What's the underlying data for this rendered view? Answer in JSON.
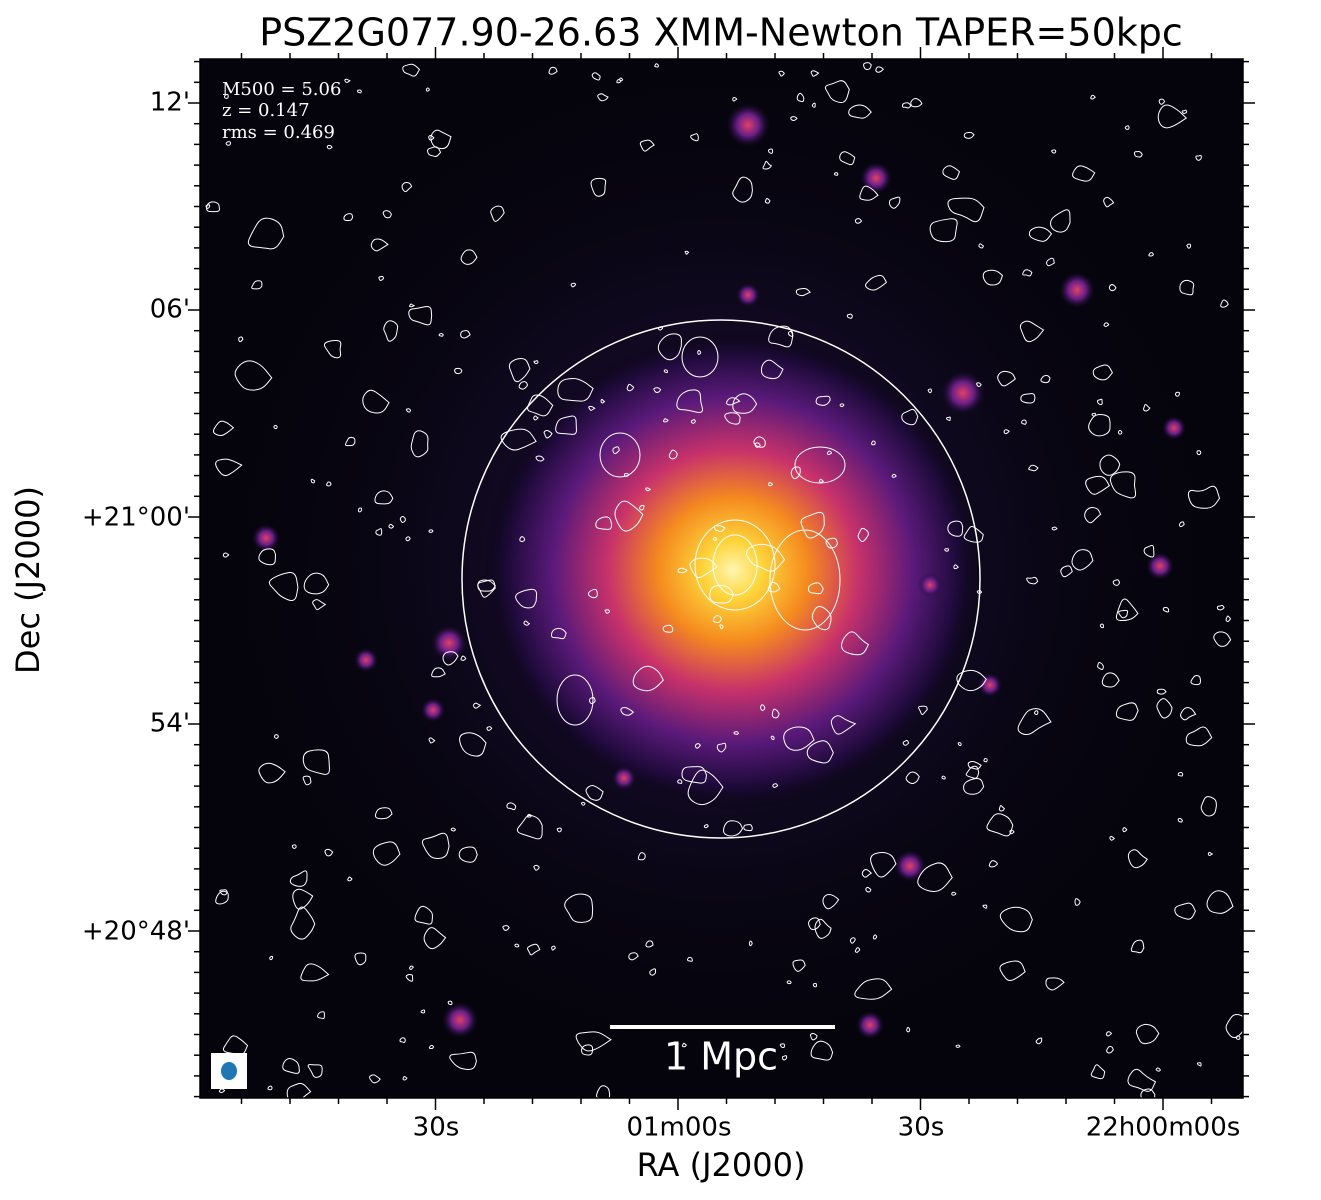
{
  "title": "PSZ2G077.90-26.63 XMM-Newton TAPER=50kpc",
  "xlabel": "RA (J2000)",
  "ylabel": "Dec (J2000)",
  "xtick_labels": [
    "30s",
    "01m00s",
    "30s",
    "22h00m00s"
  ],
  "ytick_labels": [
    "12'",
    "06'",
    "+21°00'",
    "54'",
    "+20°48'"
  ],
  "annotations": [
    "M500 = 5.06",
    "z = 0.147",
    "rms = 0.469"
  ],
  "scalebar": "1 Mpc"
}
